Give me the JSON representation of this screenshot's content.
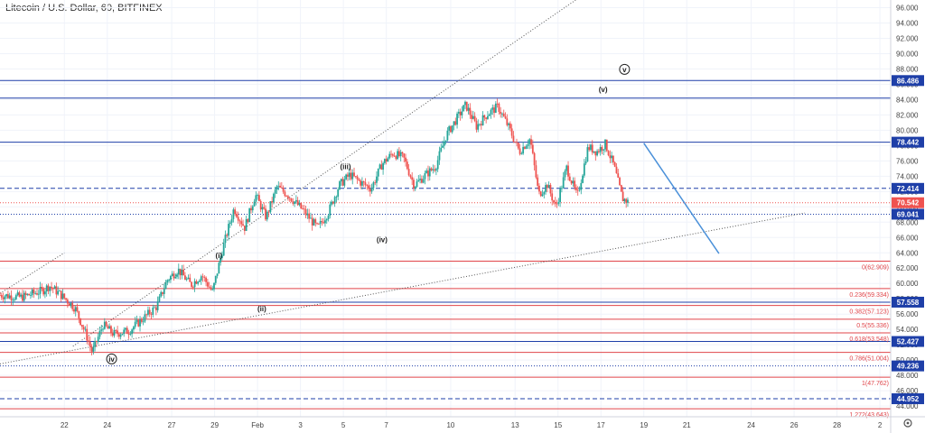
{
  "title": "Litecoin / U.S. Dollar, 60, BITFINEX",
  "colors": {
    "up": "#26a69a",
    "down": "#ef5350",
    "hline_blue": "#1e3fa8",
    "fib_red": "#e0454a",
    "target": "#4a90d9",
    "grid": "#f0f3fa",
    "dotted": "#555555",
    "current": "#ef5350"
  },
  "chart_data": {
    "type": "line",
    "title": "Litecoin / U.S. Dollar, 60, BITFINEX",
    "xlabel": "",
    "ylabel": "",
    "ylim": [
      42.6,
      97.0
    ],
    "xlim": [
      0,
      41.5
    ],
    "y_ticks": [
      44,
      46,
      48,
      50,
      52,
      54,
      56,
      58,
      60,
      62,
      64,
      66,
      68,
      70,
      72,
      74,
      76,
      78,
      80,
      82,
      84,
      86,
      88,
      90,
      92,
      94,
      96
    ],
    "x_ticks": [
      {
        "x": 3,
        "label": "22"
      },
      {
        "x": 5,
        "label": "24"
      },
      {
        "x": 8,
        "label": "27"
      },
      {
        "x": 10,
        "label": "29"
      },
      {
        "x": 12,
        "label": "Feb"
      },
      {
        "x": 14,
        "label": "3"
      },
      {
        "x": 16,
        "label": "5"
      },
      {
        "x": 18,
        "label": "7"
      },
      {
        "x": 21,
        "label": "10"
      },
      {
        "x": 24,
        "label": "13"
      },
      {
        "x": 26,
        "label": "15"
      },
      {
        "x": 28,
        "label": "17"
      },
      {
        "x": 30,
        "label": "19"
      },
      {
        "x": 32,
        "label": "21"
      },
      {
        "x": 35,
        "label": "24"
      },
      {
        "x": 37,
        "label": "26"
      },
      {
        "x": 39,
        "label": "28"
      },
      {
        "x": 41,
        "label": "2"
      }
    ],
    "price_path": [
      [
        0,
        58.5
      ],
      [
        1,
        58.2
      ],
      [
        2,
        59.1
      ],
      [
        2.3,
        59.7
      ],
      [
        2.8,
        58.6
      ],
      [
        3.5,
        56.8
      ],
      [
        4,
        53.4
      ],
      [
        4.3,
        51.0
      ],
      [
        4.8,
        54.6
      ],
      [
        5.3,
        53.4
      ],
      [
        6,
        53.8
      ],
      [
        6.7,
        55.5
      ],
      [
        7.3,
        57.0
      ],
      [
        7.8,
        60.5
      ],
      [
        8.3,
        61.8
      ],
      [
        8.9,
        59.8
      ],
      [
        9.4,
        61.1
      ],
      [
        9.9,
        58.9
      ],
      [
        10.4,
        64.8
      ],
      [
        10.9,
        69.8
      ],
      [
        11.4,
        67.3
      ],
      [
        11.9,
        71.6
      ],
      [
        12.4,
        68.6
      ],
      [
        12.9,
        72.6
      ],
      [
        13.4,
        71.6
      ],
      [
        14.1,
        69.6
      ],
      [
        14.8,
        67.2
      ],
      [
        15.3,
        69.3
      ],
      [
        15.8,
        72.8
      ],
      [
        16.3,
        74.2
      ],
      [
        16.8,
        73.2
      ],
      [
        17.3,
        72.4
      ],
      [
        17.8,
        75.6
      ],
      [
        18.3,
        77.0
      ],
      [
        18.8,
        76.4
      ],
      [
        19.3,
        72.8
      ],
      [
        19.8,
        74.1
      ],
      [
        20.3,
        75.3
      ],
      [
        20.8,
        79.4
      ],
      [
        21.3,
        81.6
      ],
      [
        21.7,
        83.3
      ],
      [
        22.2,
        80.5
      ],
      [
        22.7,
        82.1
      ],
      [
        23.2,
        83.1
      ],
      [
        23.7,
        80.4
      ],
      [
        24.2,
        77.2
      ],
      [
        24.7,
        78.9
      ],
      [
        25.1,
        71.6
      ],
      [
        25.5,
        72.9
      ],
      [
        25.9,
        69.9
      ],
      [
        26.4,
        75.1
      ],
      [
        26.9,
        71.3
      ],
      [
        27.4,
        77.8
      ],
      [
        27.8,
        77.2
      ],
      [
        28.2,
        78.2
      ],
      [
        28.6,
        75.4
      ],
      [
        29.0,
        71.1
      ],
      [
        29.3,
        70.6
      ]
    ],
    "horizontal_levels": [
      {
        "value": 86.486,
        "label": "86.486",
        "kind": "solid-blue"
      },
      {
        "value": 84.2,
        "label": "",
        "kind": "solid-blue"
      },
      {
        "value": 78.442,
        "label": "78.442",
        "kind": "solid-blue"
      },
      {
        "value": 72.414,
        "label": "72.414",
        "kind": "dashed-blue"
      },
      {
        "value": 70.542,
        "label": "70.542",
        "kind": "current"
      },
      {
        "value": 69.041,
        "label": "69.041",
        "kind": "dotted-blue"
      },
      {
        "value": 57.558,
        "label": "57.558",
        "kind": "solid-blue"
      },
      {
        "value": 52.427,
        "label": "52.427",
        "kind": "solid-blue"
      },
      {
        "value": 49.236,
        "label": "49.236",
        "kind": "dotted-blue"
      },
      {
        "value": 44.952,
        "label": "44.952",
        "kind": "dashed-blue"
      }
    ],
    "fibonacci": [
      {
        "value": 62.909,
        "label": "0(62.909)"
      },
      {
        "value": 59.334,
        "label": "0.236(59.334)"
      },
      {
        "value": 57.123,
        "label": "0.382(57.123)"
      },
      {
        "value": 55.336,
        "label": "0.5(55.336)"
      },
      {
        "value": 53.548,
        "label": "0.618(53.548)"
      },
      {
        "value": 51.004,
        "label": "0.786(51.004)"
      },
      {
        "value": 47.762,
        "label": "1(47.762)"
      },
      {
        "value": 43.643,
        "label": "1.272(43.643)"
      }
    ],
    "wave_labels": [
      {
        "x": 5.2,
        "y": 49.8,
        "label": "iv",
        "circled": true
      },
      {
        "x": 10.2,
        "y": 63.3,
        "label": "(i)",
        "circled": false
      },
      {
        "x": 12.2,
        "y": 56.4,
        "label": "(ii)",
        "circled": false
      },
      {
        "x": 16.1,
        "y": 74.9,
        "label": "(iii)",
        "circled": false
      },
      {
        "x": 17.8,
        "y": 65.4,
        "label": "(iv)",
        "circled": false
      },
      {
        "x": 28.1,
        "y": 85.0,
        "label": "(v)",
        "circled": false
      },
      {
        "x": 29.1,
        "y": 87.6,
        "label": "v",
        "circled": true
      }
    ],
    "trend_lines": [
      {
        "from": [
          3.4,
          51.8
        ],
        "to": [
          27.6,
          98.5
        ],
        "style": "dotted"
      },
      {
        "from": [
          0,
          58.7
        ],
        "to": [
          3.0,
          64.0
        ],
        "style": "dotted"
      },
      {
        "from": [
          0,
          49.5
        ],
        "to": [
          37.5,
          69.2
        ],
        "style": "dotted"
      },
      {
        "from": [
          30.0,
          78.3
        ],
        "to": [
          33.5,
          63.9
        ],
        "style": "solid-target"
      }
    ]
  },
  "toolbar": {
    "settings_icon": "gear-icon"
  }
}
